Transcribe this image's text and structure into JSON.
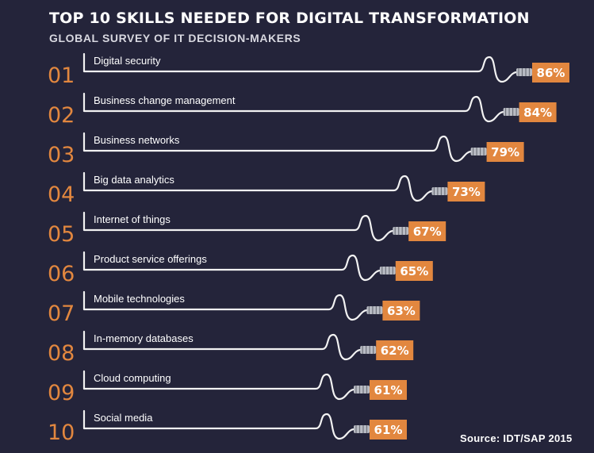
{
  "theme": {
    "background": "#24243a",
    "text": "#ffffff",
    "rank": "#e2873f",
    "subtitle": "#d8d8e0",
    "badge": "#e2873f",
    "cable": "#f2f2f2",
    "plug": "#b9bcc4"
  },
  "header": {
    "title": "TOP 10 SKILLS NEEDED FOR DIGITAL TRANSFORMATION",
    "subtitle": "GLOBAL SURVEY OF IT DECISION-MAKERS"
  },
  "footer": {
    "source": "Source: IDT/SAP 2015"
  },
  "chart_data": {
    "type": "bar",
    "title": "TOP 10 SKILLS NEEDED FOR DIGITAL TRANSFORMATION",
    "subtitle": "GLOBAL SURVEY OF IT DECISION-MAKERS",
    "xlabel": "",
    "ylabel": "",
    "ranks": [
      "01",
      "02",
      "03",
      "04",
      "05",
      "06",
      "07",
      "08",
      "09",
      "10"
    ],
    "categories": [
      "Digital security",
      "Business change management",
      "Business networks",
      "Big data analytics",
      "Internet of things",
      "Product service offerings",
      "Mobile technologies",
      "In-memory databases",
      "Cloud computing",
      "Social media"
    ],
    "values": [
      86,
      84,
      79,
      73,
      67,
      65,
      63,
      62,
      61,
      61
    ],
    "value_labels": [
      "86%",
      "84%",
      "79%",
      "73%",
      "67%",
      "65%",
      "63%",
      "62%",
      "61%",
      "61%"
    ],
    "unit": "%",
    "grid": false,
    "legend": "none"
  }
}
